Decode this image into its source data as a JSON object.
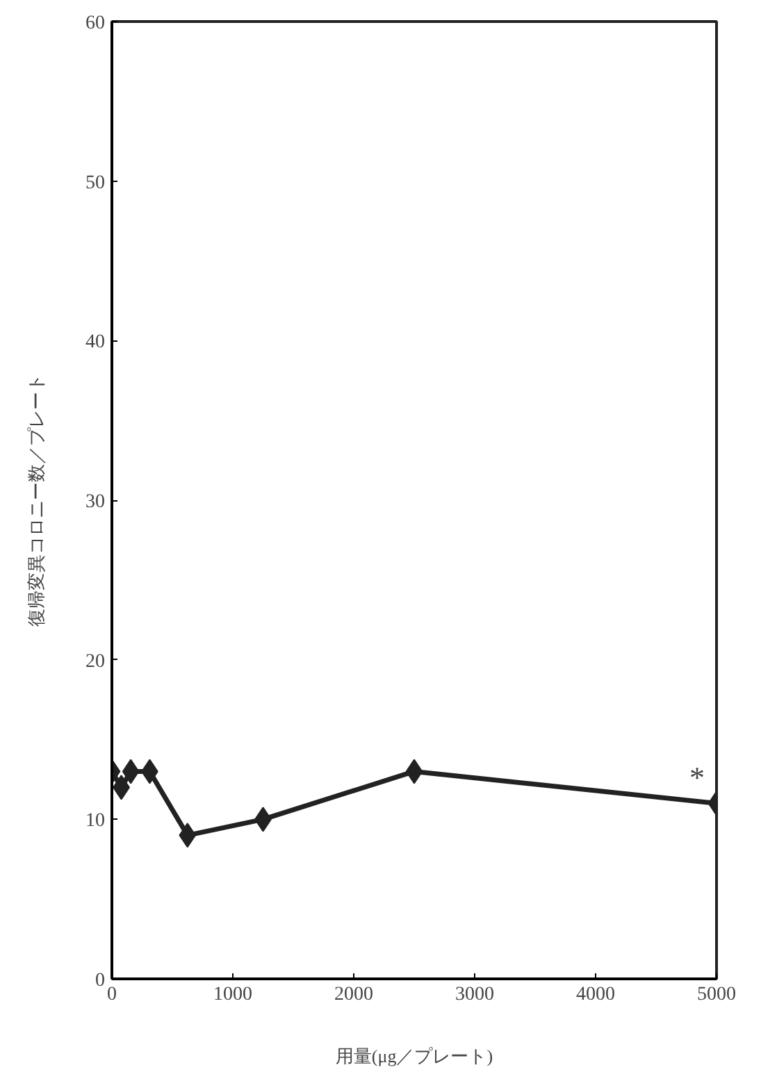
{
  "chart_data": {
    "type": "line",
    "xlabel": "用量(μg／プレート)",
    "ylabel": "復帰変異コロニー数／プレート",
    "x": [
      0,
      78,
      156,
      313,
      625,
      1250,
      2500,
      5000
    ],
    "series": [
      {
        "color": "#222222",
        "values": [
          13,
          12,
          13,
          13,
          9,
          10,
          13,
          11
        ]
      }
    ],
    "marker": "diamond",
    "line_style": "solid",
    "grid": false,
    "xlim": [
      0,
      5000
    ],
    "xticks": [
      0,
      1000,
      2000,
      3000,
      4000,
      5000
    ],
    "ylim": [
      0,
      60
    ],
    "yticks": [
      0,
      10,
      20,
      30,
      40,
      50,
      60
    ],
    "annotations": [
      {
        "text": "*",
        "x": 5000,
        "y": 11
      }
    ]
  }
}
